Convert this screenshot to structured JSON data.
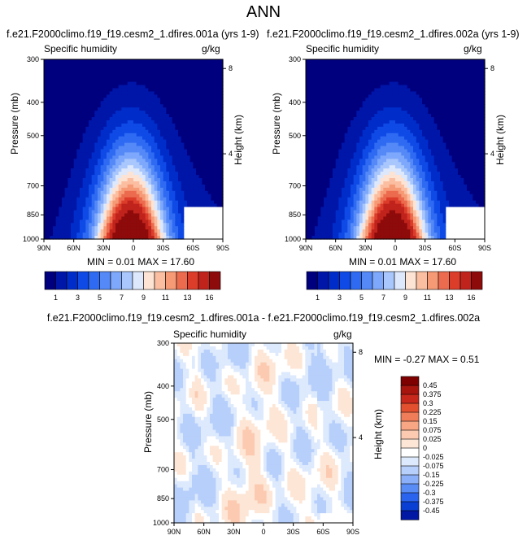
{
  "main_title": "ANN",
  "colors": {
    "seq": [
      "#00007f",
      "#0016a8",
      "#002dca",
      "#0f4ae6",
      "#2f6bf2",
      "#5489f7",
      "#7ea8fb",
      "#a9c7fc",
      "#dde8fc",
      "#fde3d3",
      "#fbbea0",
      "#f69a76",
      "#ec6b4e",
      "#dc3d2b",
      "#c0231c",
      "#8e0b0b"
    ],
    "div": [
      "#00007f",
      "#0018a4",
      "#0a3fd3",
      "#2a64ee",
      "#5a8cf6",
      "#8bb0f9",
      "#b7cffb",
      "#dde9fc",
      "#ffffff",
      "#fde6d6",
      "#fccab0",
      "#f8a683",
      "#f07d5a",
      "#e2502f",
      "#c8281c",
      "#a8150f",
      "#7f0000"
    ]
  },
  "chart_data": [
    {
      "id": "panel1",
      "type": "heatmap",
      "title": "f.e21.F2000climo.f19_f19.cesm2_1.dfires.001a (yrs 1-9)",
      "left_label": "Specific humidity",
      "right_label": "g/kg",
      "ylabel": "Pressure (mb)",
      "y2label": "Height (km)",
      "xticks": [
        "90N",
        "60N",
        "30N",
        "0",
        "30S",
        "60S",
        "90S"
      ],
      "x_lat": [
        90,
        60,
        30,
        0,
        -30,
        -60,
        -90
      ],
      "yticks": [
        "300",
        "400",
        "500",
        "700",
        "850",
        "1000"
      ],
      "y_pressure": [
        300,
        400,
        500,
        700,
        850,
        1000
      ],
      "y2ticks": [
        "8",
        "4"
      ],
      "y2_km": [
        8,
        4
      ],
      "stats": "MIN =  0.01  MAX = 17.60",
      "levels": [
        "1",
        "3",
        "5",
        "7",
        "9",
        "11",
        "13",
        "16"
      ]
    },
    {
      "id": "panel2",
      "type": "heatmap",
      "title": "f.e21.F2000climo.f19_f19.cesm2_1.dfires.002a (yrs 1-9)",
      "left_label": "Specific humidity",
      "right_label": "g/kg",
      "ylabel": "Pressure (mb)",
      "y2label": "Height (km)",
      "xticks": [
        "90N",
        "60N",
        "30N",
        "0",
        "30S",
        "60S",
        "90S"
      ],
      "x_lat": [
        90,
        60,
        30,
        0,
        -30,
        -60,
        -90
      ],
      "yticks": [
        "300",
        "400",
        "500",
        "700",
        "850",
        "1000"
      ],
      "y_pressure": [
        300,
        400,
        500,
        700,
        850,
        1000
      ],
      "y2ticks": [
        "8",
        "4"
      ],
      "y2_km": [
        8,
        4
      ],
      "stats": "MIN =  0.01  MAX = 17.60",
      "levels": [
        "1",
        "3",
        "5",
        "7",
        "9",
        "11",
        "13",
        "16"
      ]
    },
    {
      "id": "panel3",
      "type": "heatmap",
      "title": "f.e21.F2000climo.f19_f19.cesm2_1.dfires.001a - f.e21.F2000climo.f19_f19.cesm2_1.dfires.002a",
      "left_label": "Specific humidity",
      "right_label": "g/kg",
      "ylabel": "Pressure (mb)",
      "y2label": "Height (km)",
      "xticks": [
        "90N",
        "60N",
        "30N",
        "0",
        "30S",
        "60S",
        "90S"
      ],
      "x_lat": [
        90,
        60,
        30,
        0,
        -30,
        -60,
        -90
      ],
      "yticks": [
        "300",
        "400",
        "500",
        "700",
        "850",
        "1000"
      ],
      "y_pressure": [
        300,
        400,
        500,
        700,
        850,
        1000
      ],
      "y2ticks": [
        "8",
        "4"
      ],
      "y2_km": [
        8,
        4
      ],
      "stats": "MIN = -0.27  MAX =  0.51",
      "levels": [
        "0.45",
        "0.375",
        "0.3",
        "0.225",
        "0.15",
        "0.075",
        "0.025",
        "0",
        "-0.025",
        "-0.075",
        "-0.15",
        "-0.225",
        "-0.3",
        "-0.375",
        "-0.45"
      ]
    }
  ]
}
